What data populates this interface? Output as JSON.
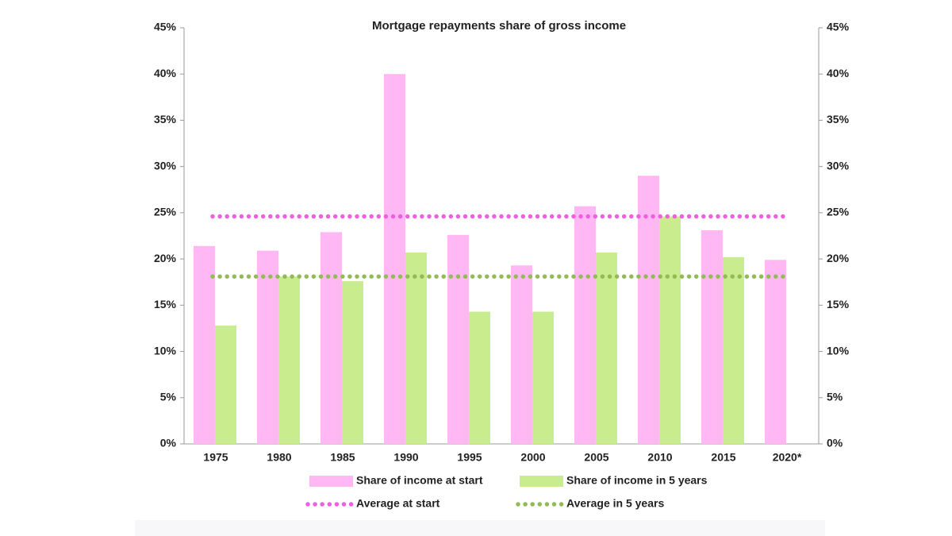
{
  "chart_data": {
    "type": "bar",
    "title": "Mortgage repayments share of gross income",
    "categories": [
      "1975",
      "1980",
      "1985",
      "1990",
      "1995",
      "2000",
      "2005",
      "2010",
      "2015",
      "2020*"
    ],
    "series": [
      {
        "name": "Share of income at start",
        "type": "bar",
        "color": "#ffb8f4",
        "values": [
          21.4,
          20.9,
          22.9,
          40.0,
          22.6,
          19.3,
          25.7,
          29.0,
          23.1,
          19.9
        ]
      },
      {
        "name": "Share of income in 5 years",
        "type": "bar",
        "color": "#c8ec8e",
        "values": [
          12.8,
          18.1,
          17.6,
          20.7,
          14.3,
          14.3,
          20.7,
          24.6,
          20.2,
          null
        ]
      },
      {
        "name": "Average at start",
        "type": "line",
        "style": "dotted",
        "color": "#ef5fe0",
        "values": [
          24.6,
          24.6,
          24.6,
          24.6,
          24.6,
          24.6,
          24.6,
          24.6,
          24.6,
          24.6
        ]
      },
      {
        "name": "Average in 5 years",
        "type": "line",
        "style": "dotted",
        "color": "#92bb55",
        "values": [
          18.1,
          18.1,
          18.1,
          18.1,
          18.1,
          18.1,
          18.1,
          18.1,
          18.1,
          18.1
        ]
      }
    ],
    "ylim": [
      0,
      45
    ],
    "yticks": [
      {
        "value": 0,
        "label": "0%"
      },
      {
        "value": 5,
        "label": "5%"
      },
      {
        "value": 10,
        "label": "10%"
      },
      {
        "value": 15,
        "label": "15%"
      },
      {
        "value": 20,
        "label": "20%"
      },
      {
        "value": 25,
        "label": "25%"
      },
      {
        "value": 30,
        "label": "30%"
      },
      {
        "value": 35,
        "label": "35%"
      },
      {
        "value": 40,
        "label": "40%"
      },
      {
        "value": 45,
        "label": "45%"
      }
    ],
    "y2lim": [
      0,
      45
    ],
    "y2ticks": [
      {
        "value": 0,
        "label": "0%"
      },
      {
        "value": 5,
        "label": "5%"
      },
      {
        "value": 10,
        "label": "10%"
      },
      {
        "value": 15,
        "label": "15%"
      },
      {
        "value": 20,
        "label": "20%"
      },
      {
        "value": 25,
        "label": "25%"
      },
      {
        "value": 30,
        "label": "30%"
      },
      {
        "value": 35,
        "label": "35%"
      },
      {
        "value": 40,
        "label": "40%"
      },
      {
        "value": 45,
        "label": "45%"
      }
    ],
    "grid": false,
    "legend": "bottom"
  }
}
